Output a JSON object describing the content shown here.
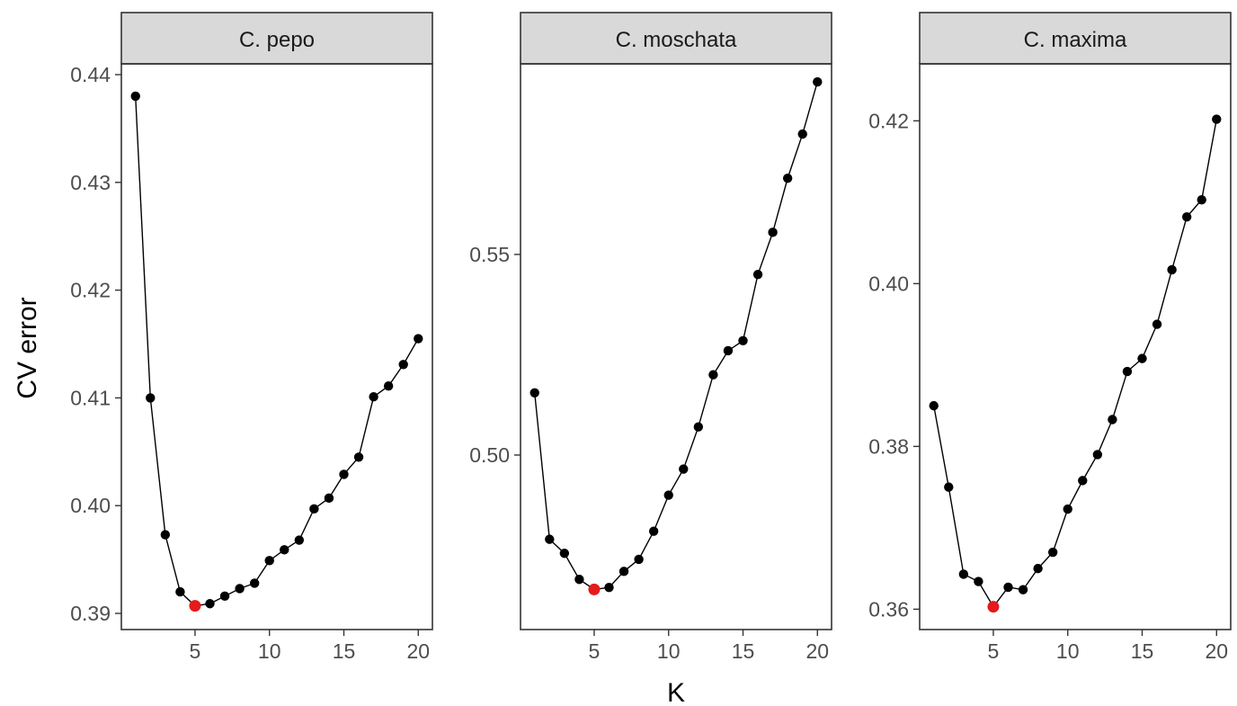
{
  "chart_data": {
    "type": "line",
    "xlabel": "K",
    "ylabel": "CV error",
    "x": [
      1,
      2,
      3,
      4,
      5,
      6,
      7,
      8,
      9,
      10,
      11,
      12,
      13,
      14,
      15,
      16,
      17,
      18,
      19,
      20
    ],
    "x_ticks": [
      5,
      10,
      15,
      20
    ],
    "highlight_x": 5,
    "grid": false,
    "colors": {
      "point": "#000000",
      "highlight": "#e41a1c",
      "strip": "#d9d9d9"
    },
    "panels": [
      {
        "title": "C. pepo",
        "ylim": [
          0.3885,
          0.441
        ],
        "y_ticks": [
          0.39,
          0.4,
          0.41,
          0.42,
          0.43,
          0.44
        ],
        "y_tick_labels": [
          "0.39",
          "0.40",
          "0.41",
          "0.42",
          "0.43",
          "0.44"
        ],
        "values": [
          0.438,
          0.41,
          0.3973,
          0.392,
          0.3907,
          0.3909,
          0.3916,
          0.3923,
          0.3928,
          0.3949,
          0.3959,
          0.3968,
          0.3997,
          0.4007,
          0.4029,
          0.4045,
          0.4101,
          0.4111,
          0.4131,
          0.4155
        ]
      },
      {
        "title": "C. moschata",
        "ylim": [
          0.4565,
          0.5975
        ],
        "y_ticks": [
          0.5,
          0.55
        ],
        "y_tick_labels": [
          "0.50",
          "0.55"
        ],
        "values": [
          0.5155,
          0.479,
          0.4755,
          0.469,
          0.4665,
          0.467,
          0.471,
          0.474,
          0.481,
          0.49,
          0.4965,
          0.507,
          0.52,
          0.526,
          0.5285,
          0.545,
          0.5555,
          0.569,
          0.58,
          0.593
        ]
      },
      {
        "title": "C. maxima",
        "ylim": [
          0.3575,
          0.427
        ],
        "y_ticks": [
          0.36,
          0.38,
          0.4,
          0.42
        ],
        "y_tick_labels": [
          "0.36",
          "0.38",
          "0.40",
          "0.42"
        ],
        "values": [
          0.385,
          0.375,
          0.3643,
          0.3634,
          0.3603,
          0.3627,
          0.3624,
          0.365,
          0.367,
          0.3723,
          0.3758,
          0.379,
          0.3833,
          0.3892,
          0.3908,
          0.395,
          0.4017,
          0.4082,
          0.4103,
          0.4202
        ]
      }
    ]
  }
}
